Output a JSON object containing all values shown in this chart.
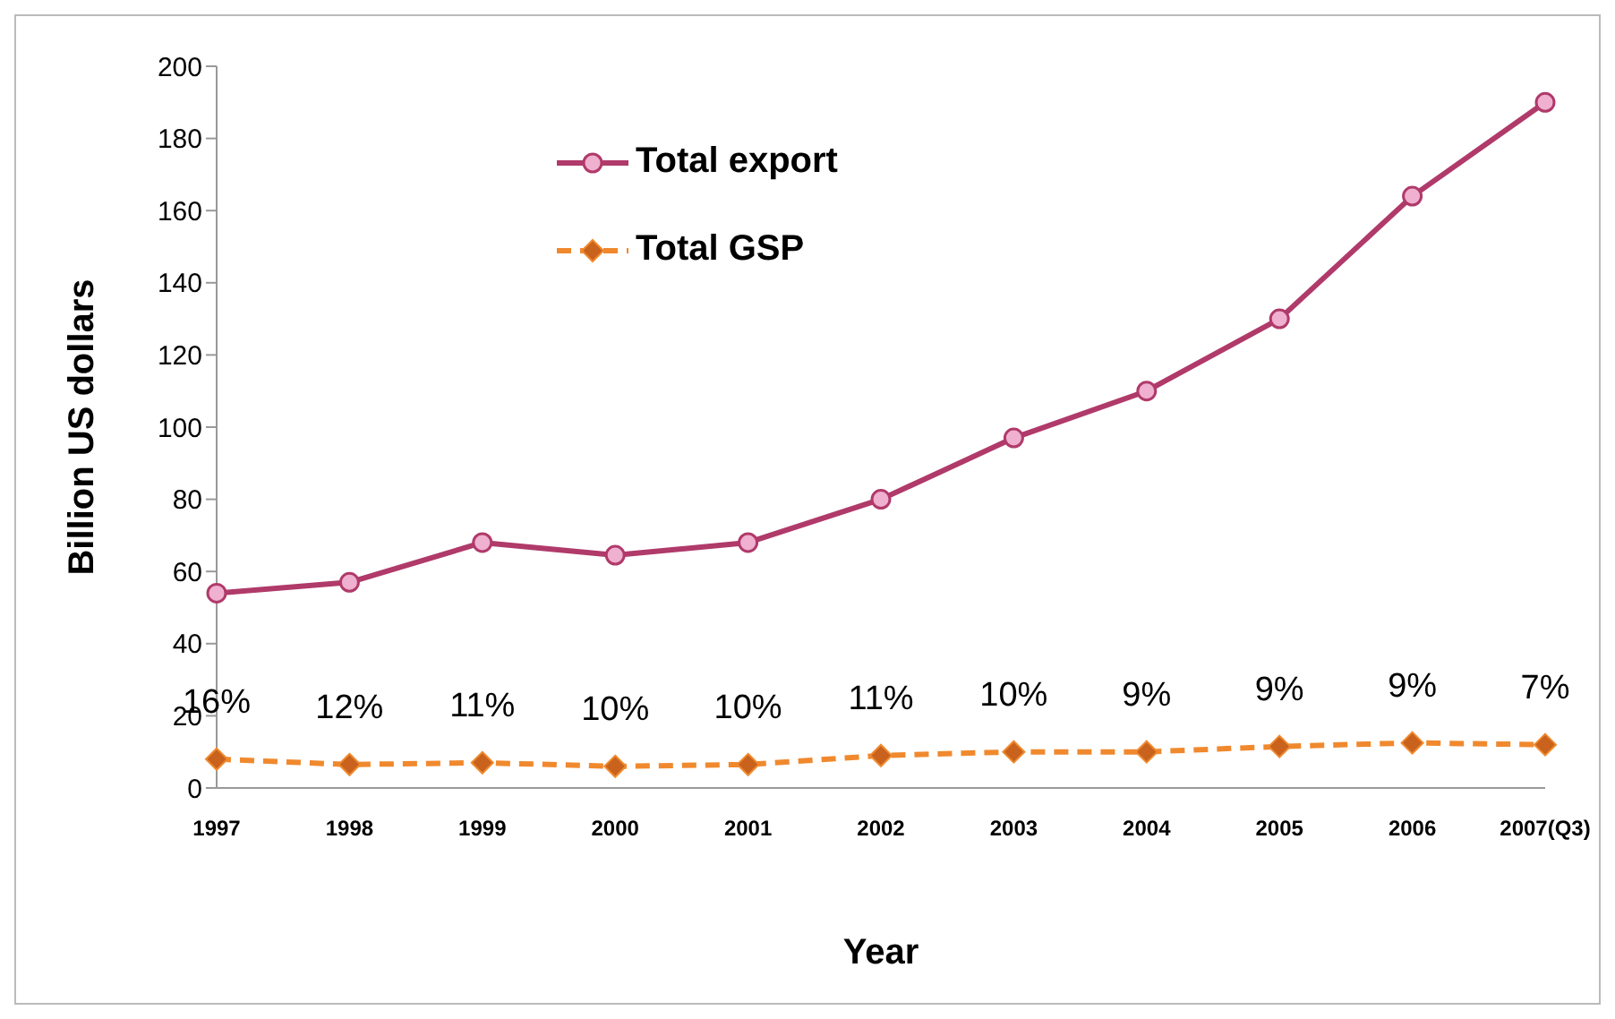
{
  "chart_data": {
    "type": "line",
    "xlabel": "Year",
    "ylabel": "Billion US dollars",
    "categories": [
      "1997",
      "1998",
      "1999",
      "2000",
      "2001",
      "2002",
      "2003",
      "2004",
      "2005",
      "2006",
      "2007(Q3)"
    ],
    "ylim": [
      0,
      200
    ],
    "yticks": [
      0,
      20,
      40,
      60,
      80,
      100,
      120,
      140,
      160,
      180,
      200
    ],
    "grid": false,
    "legend": "top left",
    "series": [
      {
        "name": "Total export",
        "color": "#b03a6a",
        "marker": "circle",
        "line_style": "solid",
        "values": [
          54,
          57,
          68,
          64.5,
          68,
          80,
          97,
          110,
          130,
          164,
          190
        ]
      },
      {
        "name": "Total GSP",
        "color": "#f0892e",
        "marker": "diamond",
        "line_style": "dashed",
        "values": [
          8,
          6.5,
          7,
          6,
          6.5,
          9,
          10,
          10,
          11.5,
          12.5,
          12
        ]
      }
    ],
    "annotations": [
      {
        "text": "16%",
        "x": "1997",
        "y": 8
      },
      {
        "text": "12%",
        "x": "1998",
        "y": 6.5
      },
      {
        "text": "11%",
        "x": "1999",
        "y": 7
      },
      {
        "text": "10%",
        "x": "2000",
        "y": 6
      },
      {
        "text": "10%",
        "x": "2001",
        "y": 6.5
      },
      {
        "text": "11%",
        "x": "2002",
        "y": 9
      },
      {
        "text": "10%",
        "x": "2003",
        "y": 10
      },
      {
        "text": "9%",
        "x": "2004",
        "y": 10
      },
      {
        "text": "9%",
        "x": "2005",
        "y": 11.5
      },
      {
        "text": "9%",
        "x": "2006",
        "y": 12.5
      },
      {
        "text": "7%",
        "x": "2007(Q3)",
        "y": 12
      }
    ]
  }
}
